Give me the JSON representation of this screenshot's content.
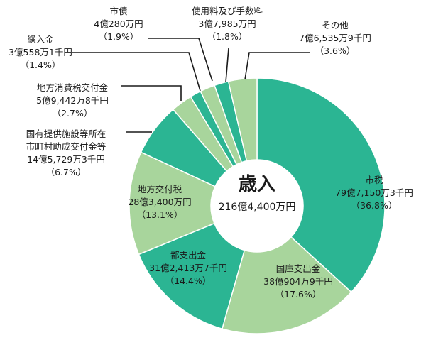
{
  "chart_data": {
    "type": "pie",
    "donut": true,
    "center_title": "歳入",
    "center_total": "216億4,400万円",
    "colors": {
      "dark": "#2bb593",
      "light": "#a8d59c",
      "stroke": "#ffffff"
    },
    "slices": [
      {
        "name": "市税",
        "amount": "79億7,150万3千円",
        "percent_label": "（36.8%）",
        "value": 36.8,
        "color": "dark"
      },
      {
        "name": "国庫支出金",
        "amount": "38億904万9千円",
        "percent_label": "（17.6%）",
        "value": 17.6,
        "color": "light"
      },
      {
        "name": "都支出金",
        "amount": "31億2,413万7千円",
        "percent_label": "（14.4%）",
        "value": 14.4,
        "color": "dark"
      },
      {
        "name": "地方交付税",
        "amount": "28億3,400万円",
        "percent_label": "（13.1%）",
        "value": 13.1,
        "color": "light"
      },
      {
        "name": "国有提供施設等所在\n市町村助成交付金等",
        "amount": "14億5,729万3千円",
        "percent_label": "（6.7%）",
        "value": 6.7,
        "color": "dark"
      },
      {
        "name": "地方消費税交付金",
        "amount": "5億9,442万8千円",
        "percent_label": "（2.7%）",
        "value": 2.7,
        "color": "light"
      },
      {
        "name": "繰入金",
        "amount": "3億558万1千円",
        "percent_label": "（1.4%）",
        "value": 1.4,
        "color": "dark"
      },
      {
        "name": "市債",
        "amount": "4億280万円",
        "percent_label": "（1.9%）",
        "value": 1.9,
        "color": "light"
      },
      {
        "name": "使用料及び手数料",
        "amount": "3億7,985万円",
        "percent_label": "（1.8%）",
        "value": 1.8,
        "color": "dark"
      },
      {
        "name": "その他",
        "amount": "7億6,535万9千円",
        "percent_label": "（3.6%）",
        "value": 3.6,
        "color": "light"
      }
    ]
  }
}
